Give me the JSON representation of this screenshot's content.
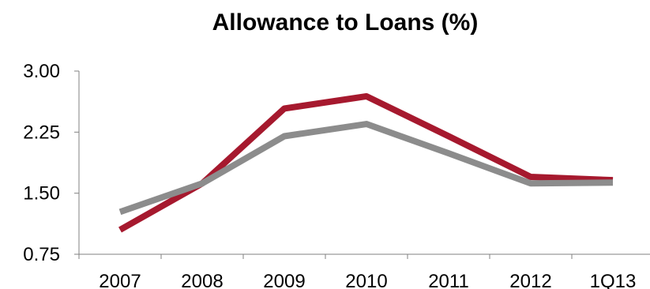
{
  "chart_data": {
    "type": "line",
    "title": "Allowance to Loans (%)",
    "xlabel": "",
    "ylabel": "",
    "categories": [
      "2007",
      "2008",
      "2009",
      "2010",
      "2011",
      "2012",
      "1Q13"
    ],
    "ylim": [
      0.75,
      3.0
    ],
    "yticks": [
      "0.75",
      "1.50",
      "2.25",
      "3.00"
    ],
    "grid": false,
    "legend": "none",
    "series": [
      {
        "color": "#a6192e",
        "values": [
          1.05,
          1.62,
          2.54,
          2.69,
          2.2,
          1.7,
          1.66
        ]
      },
      {
        "color": "#8c8c8c",
        "values": [
          1.27,
          1.62,
          2.2,
          2.35,
          1.99,
          1.62,
          1.63
        ]
      }
    ]
  }
}
